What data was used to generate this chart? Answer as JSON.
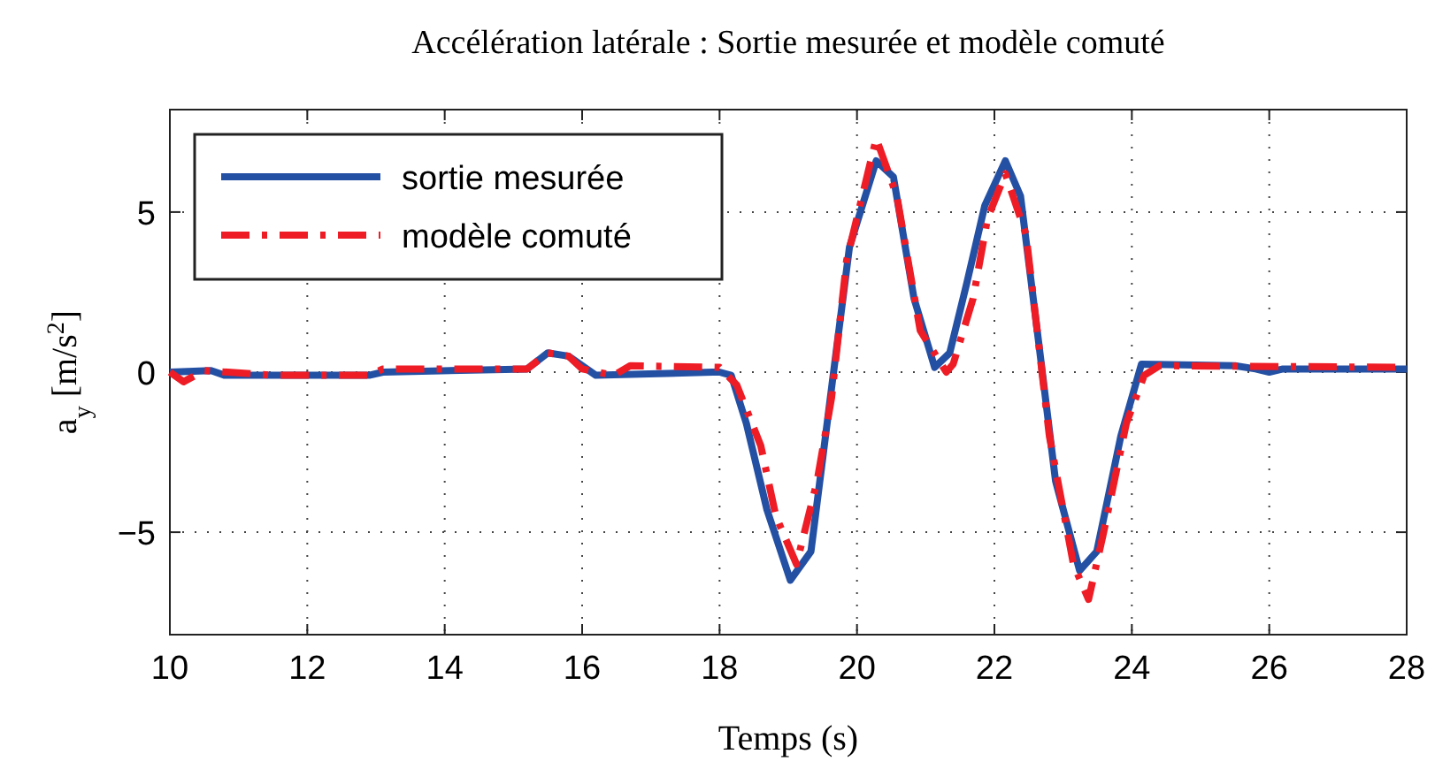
{
  "chart_data": {
    "type": "line",
    "title": "Accélération latérale : Sortie mesurée et modèle comuté",
    "xlabel": "Temps (s)",
    "ylabel": "a$_{y}$ [m/s$^{2}$]",
    "xlim": [
      10,
      28
    ],
    "xticks": [
      10,
      12,
      14,
      16,
      18,
      20,
      22,
      24,
      26,
      28
    ],
    "ylim": [
      -8.2,
      8.2
    ],
    "yticks": [
      -5,
      0,
      5
    ],
    "grid": true,
    "legend": "top left",
    "series": [
      {
        "name": "sortie mesurée",
        "color": "#2450a4",
        "line_style": "solid",
        "x": [
          10,
          10.6,
          10.8,
          12.9,
          13.1,
          15.2,
          15.5,
          15.8,
          16.2,
          17.9,
          18.0,
          18.17,
          18.39,
          18.69,
          19.03,
          19.33,
          19.63,
          19.89,
          20.28,
          20.53,
          20.83,
          21.13,
          21.35,
          21.6,
          21.86,
          22.16,
          22.38,
          22.64,
          22.89,
          23.24,
          23.49,
          23.84,
          24.14,
          25.5,
          25.8,
          26.0,
          26.2,
          28
        ],
        "values": [
          0,
          0.05,
          -0.1,
          -0.1,
          0,
          0.1,
          0.6,
          0.5,
          -0.1,
          0,
          0,
          -0.1,
          -1.6,
          -4.3,
          -6.5,
          -5.6,
          -0.5,
          3.9,
          6.6,
          6.1,
          2.3,
          0.15,
          0.6,
          2.8,
          5.2,
          6.6,
          5.5,
          1.0,
          -3.4,
          -6.2,
          -5.6,
          -2.0,
          0.25,
          0.2,
          0.1,
          0,
          0.1,
          0.1
        ]
      },
      {
        "name": "modèle comuté",
        "color": "#ee1c25",
        "line_style": "dashed",
        "x": [
          10,
          10.2,
          10.5,
          11.5,
          12.9,
          13.1,
          15.2,
          15.5,
          15.8,
          16.0,
          16.46,
          16.7,
          18.0,
          18.25,
          18.6,
          18.82,
          19.12,
          19.42,
          19.63,
          19.85,
          20.28,
          20.58,
          20.92,
          21.3,
          21.4,
          21.69,
          21.9,
          22.16,
          22.46,
          22.8,
          23.15,
          23.37,
          23.58,
          23.92,
          24.18,
          24.4,
          28
        ],
        "values": [
          0,
          -0.3,
          0.05,
          -0.1,
          -0.1,
          0.1,
          0.1,
          0.6,
          0.5,
          0.1,
          -0.1,
          0.2,
          0.15,
          -0.4,
          -2.3,
          -4.5,
          -6.0,
          -3.4,
          -0.8,
          3.5,
          7.3,
          5.5,
          1.3,
          0,
          0.25,
          2.3,
          4.8,
          6.2,
          4.3,
          -2.0,
          -6.0,
          -7.1,
          -5.1,
          -1.6,
          -0.1,
          0.2,
          0.15
        ]
      }
    ]
  }
}
